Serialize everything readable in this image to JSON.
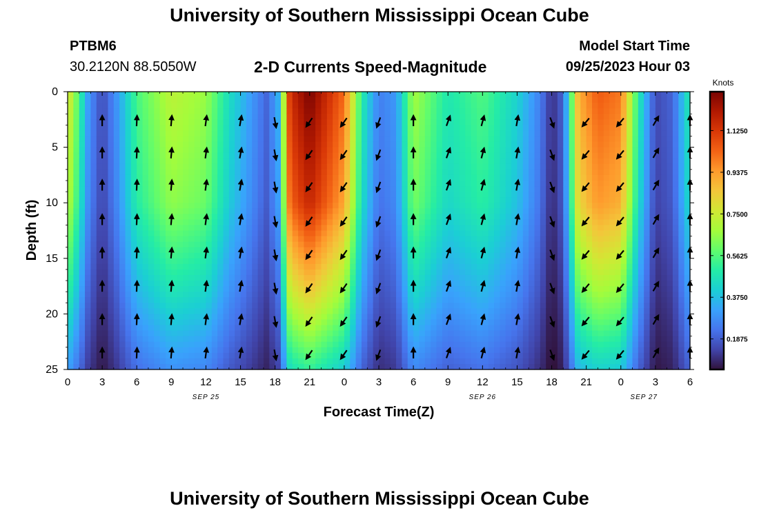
{
  "page": {
    "title": "University of Southern Mississippi Ocean Cube",
    "station": "PTBM6",
    "coords": "30.2120N  88.5050W",
    "subtitle": "2-D Currents Speed-Magnitude",
    "model_start_label": "Model Start Time",
    "model_start_value": "09/25/2023 Hour 03",
    "footer_title": "University of Southern Mississippi Ocean Cube"
  },
  "chart_data": {
    "type": "heatmap",
    "title": "2-D Currents Speed-Magnitude",
    "xlabel": "Forecast Time(Z)",
    "ylabel": "Depth (ft)",
    "x_ticks": [
      "0",
      "3",
      "6",
      "9",
      "12",
      "15",
      "18",
      "21",
      "0",
      "3",
      "6",
      "9",
      "12",
      "15",
      "18",
      "21",
      "0",
      "3",
      "6"
    ],
    "x_range_hours": [
      0,
      54
    ],
    "date_labels": [
      {
        "text": "SEP 25",
        "hour": 12
      },
      {
        "text": "SEP 26",
        "hour": 36
      },
      {
        "text": "SEP 27",
        "hour": 50
      }
    ],
    "y_ticks": [
      0,
      5,
      10,
      15,
      20,
      25
    ],
    "y_range": [
      0,
      25
    ],
    "colorbar": {
      "label": "Knots",
      "min": 0.05,
      "max": 1.3,
      "ticks": [
        "1.1250",
        "0.9375",
        "0.7500",
        "0.5625",
        "0.3750",
        "0.1875"
      ],
      "tick_values": [
        1.125,
        0.9375,
        0.75,
        0.5625,
        0.375,
        0.1875
      ],
      "colors": [
        "#30123b",
        "#4145ab",
        "#4675ed",
        "#39a2fc",
        "#1bcfd4",
        "#24eca6",
        "#61fc6c",
        "#a4fc3b",
        "#d1e834",
        "#f3c63a",
        "#fe9b2d",
        "#f36315",
        "#d93807",
        "#b11901",
        "#7a0403"
      ]
    },
    "speed_profile": [
      {
        "t": 0,
        "s": 0.8
      },
      {
        "t": 0.8,
        "s": 0.6
      },
      {
        "t": 1.8,
        "s": 0.3
      },
      {
        "t": 3,
        "s": 0.15
      },
      {
        "t": 4.3,
        "s": 0.3
      },
      {
        "t": 6,
        "s": 0.55
      },
      {
        "t": 9,
        "s": 0.72
      },
      {
        "t": 12,
        "s": 0.66
      },
      {
        "t": 14,
        "s": 0.45
      },
      {
        "t": 16,
        "s": 0.3
      },
      {
        "t": 17.3,
        "s": 0.2
      },
      {
        "t": 18.3,
        "s": 0.35
      },
      {
        "t": 19.3,
        "s": 1.15
      },
      {
        "t": 21,
        "s": 1.3
      },
      {
        "t": 24,
        "s": 1.02
      },
      {
        "t": 25.5,
        "s": 0.5
      },
      {
        "t": 27,
        "s": 0.25
      },
      {
        "t": 28.5,
        "s": 0.3
      },
      {
        "t": 30,
        "s": 0.68
      },
      {
        "t": 33,
        "s": 0.48
      },
      {
        "t": 36,
        "s": 0.56
      },
      {
        "t": 39,
        "s": 0.42
      },
      {
        "t": 41,
        "s": 0.25
      },
      {
        "t": 42,
        "s": 0.1
      },
      {
        "t": 43,
        "s": 0.2
      },
      {
        "t": 44.3,
        "s": 0.9
      },
      {
        "t": 46,
        "s": 1.05
      },
      {
        "t": 48,
        "s": 1.0
      },
      {
        "t": 49.5,
        "s": 0.5
      },
      {
        "t": 51,
        "s": 0.15
      },
      {
        "t": 52.5,
        "s": 0.2
      },
      {
        "t": 54,
        "s": 0.5
      }
    ],
    "depth_factor": [
      {
        "d": 0,
        "f": 1.0
      },
      {
        "d": 10,
        "f": 0.9
      },
      {
        "d": 18,
        "f": 0.65
      },
      {
        "d": 25,
        "f": 0.4
      }
    ],
    "vector_times": [
      3,
      6,
      9,
      12,
      15,
      18,
      21,
      24,
      27,
      30,
      33,
      36,
      39,
      42,
      45,
      48,
      51,
      54
    ],
    "vector_depths": [
      2.7,
      5.6,
      8.5,
      11.6,
      14.6,
      17.6,
      20.6,
      23.6
    ],
    "vector_direction_deg": [
      {
        "t": 3,
        "dir": 0
      },
      {
        "t": 15,
        "dir": 10
      },
      {
        "t": 18,
        "dir": 170
      },
      {
        "t": 21,
        "dir": 215
      },
      {
        "t": 24,
        "dir": 215
      },
      {
        "t": 27,
        "dir": 200
      },
      {
        "t": 30,
        "dir": 0
      },
      {
        "t": 33,
        "dir": 20
      },
      {
        "t": 39,
        "dir": 10
      },
      {
        "t": 42,
        "dir": 160
      },
      {
        "t": 45,
        "dir": 220
      },
      {
        "t": 48,
        "dir": 220
      },
      {
        "t": 51,
        "dir": 30
      },
      {
        "t": 54,
        "dir": 0
      }
    ]
  }
}
